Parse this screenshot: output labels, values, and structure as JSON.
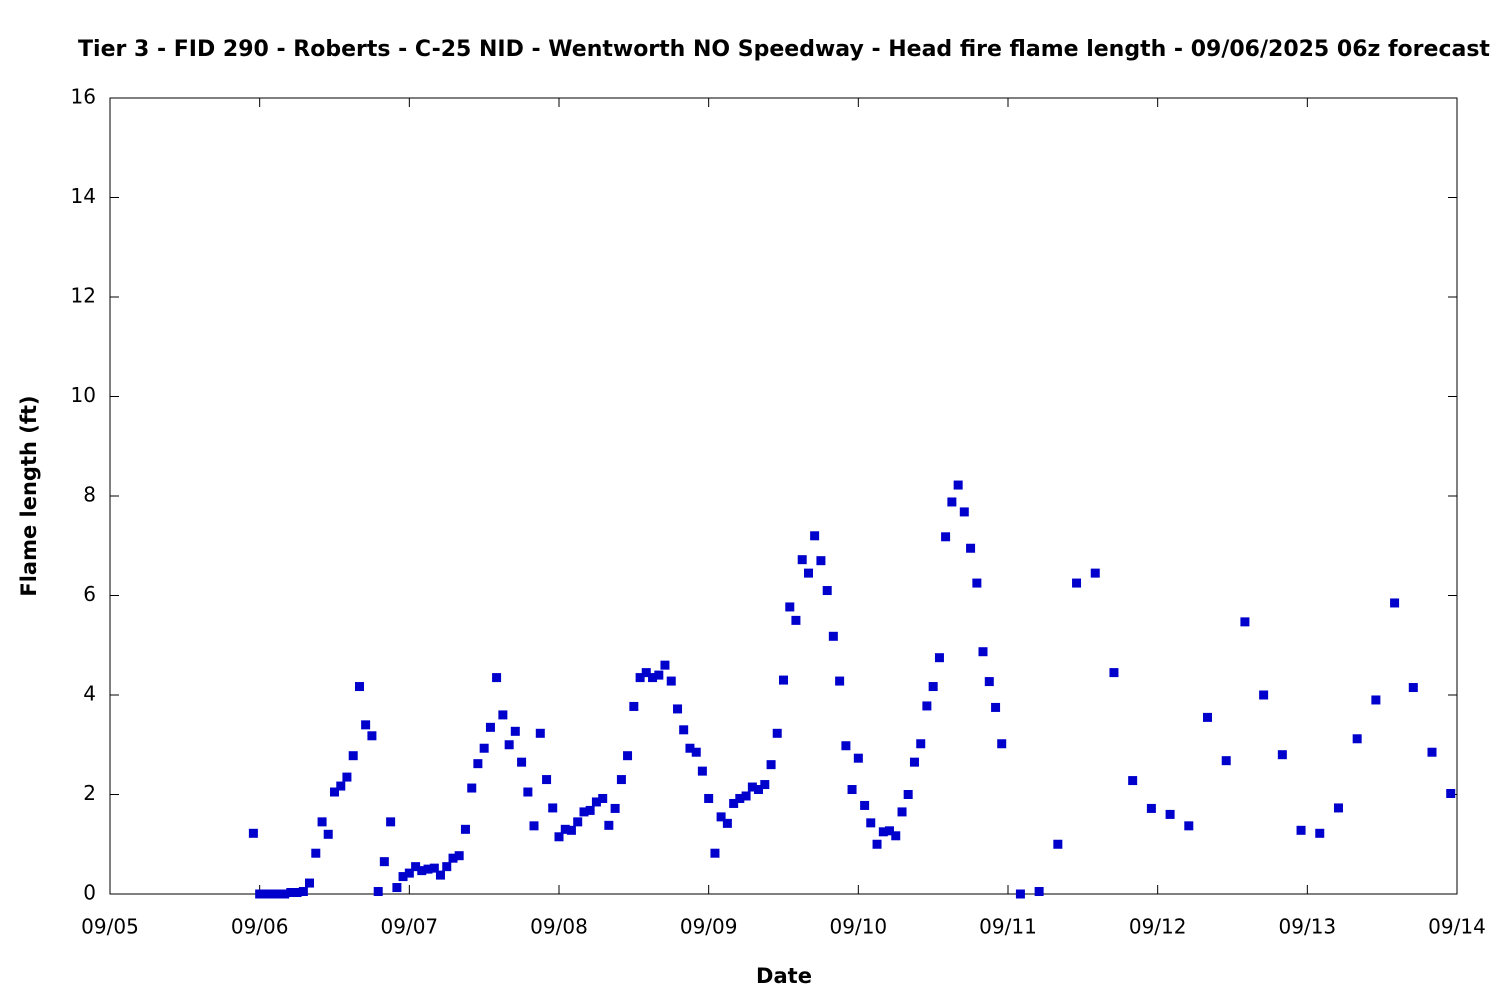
{
  "chart_data": {
    "type": "scatter",
    "title": "Tier 3 - FID 290 - Roberts - C-25 NID - Wentworth NO Speedway - Head fire flame length - 09/06/2025 06z forecast",
    "x_label": "Date",
    "y_label": "Flame length (ft)",
    "color": "#0000cc",
    "xlim": [
      5,
      14
    ],
    "xticks": [
      {
        "value": 5,
        "label": "09/05"
      },
      {
        "value": 6,
        "label": "09/06"
      },
      {
        "value": 7,
        "label": "09/07"
      },
      {
        "value": 8,
        "label": "09/08"
      },
      {
        "value": 9,
        "label": "09/09"
      },
      {
        "value": 10,
        "label": "09/10"
      },
      {
        "value": 11,
        "label": "09/11"
      },
      {
        "value": 12,
        "label": "09/12"
      },
      {
        "value": 13,
        "label": "09/13"
      },
      {
        "value": 14,
        "label": "09/14"
      }
    ],
    "ylim": [
      0,
      16
    ],
    "yticks": [
      0,
      2,
      4,
      6,
      8,
      10,
      12,
      14,
      16
    ],
    "x": [
      5.958,
      6.0,
      6.042,
      6.083,
      6.125,
      6.167,
      6.208,
      6.25,
      6.292,
      6.333,
      6.375,
      6.417,
      6.458,
      6.5,
      6.542,
      6.583,
      6.625,
      6.667,
      6.708,
      6.75,
      6.792,
      6.833,
      6.875,
      6.917,
      6.958,
      7.0,
      7.042,
      7.083,
      7.125,
      7.167,
      7.208,
      7.25,
      7.292,
      7.333,
      7.375,
      7.417,
      7.458,
      7.5,
      7.542,
      7.583,
      7.625,
      7.667,
      7.708,
      7.75,
      7.792,
      7.833,
      7.875,
      7.917,
      7.958,
      8.0,
      8.042,
      8.083,
      8.125,
      8.167,
      8.208,
      8.25,
      8.292,
      8.333,
      8.375,
      8.417,
      8.458,
      8.5,
      8.542,
      8.583,
      8.625,
      8.667,
      8.708,
      8.75,
      8.792,
      8.833,
      8.875,
      8.917,
      8.958,
      9.0,
      9.042,
      9.083,
      9.125,
      9.167,
      9.208,
      9.25,
      9.292,
      9.333,
      9.375,
      9.417,
      9.458,
      9.5,
      9.542,
      9.583,
      9.625,
      9.667,
      9.708,
      9.75,
      9.792,
      9.833,
      9.875,
      9.917,
      9.958,
      10.0,
      10.042,
      10.083,
      10.125,
      10.167,
      10.208,
      10.25,
      10.292,
      10.333,
      10.375,
      10.417,
      10.458,
      10.5,
      10.542,
      10.583,
      10.625,
      10.667,
      10.708,
      10.75,
      10.792,
      10.833,
      10.875,
      10.917,
      10.958,
      11.083,
      11.208,
      11.333,
      11.458,
      11.583,
      11.708,
      11.833,
      11.958,
      12.083,
      12.208,
      12.333,
      12.458,
      12.583,
      12.708,
      12.833,
      12.958,
      13.083,
      13.208,
      13.333,
      13.458,
      13.583,
      13.708,
      13.833,
      13.958
    ],
    "values": [
      1.22,
      0,
      0,
      0,
      0,
      0,
      0.03,
      0.03,
      0.05,
      0.22,
      0.82,
      1.45,
      1.2,
      2.05,
      2.17,
      2.35,
      2.78,
      4.17,
      3.4,
      3.18,
      0.05,
      0.65,
      1.45,
      0.13,
      0.35,
      0.42,
      0.55,
      0.47,
      0.5,
      0.52,
      0.38,
      0.55,
      0.72,
      0.77,
      1.3,
      2.13,
      2.62,
      2.93,
      3.35,
      4.35,
      3.6,
      3.0,
      3.27,
      2.65,
      2.05,
      1.37,
      3.23,
      2.3,
      1.73,
      1.15,
      1.3,
      1.28,
      1.45,
      1.65,
      1.68,
      1.85,
      1.92,
      1.38,
      1.72,
      2.3,
      2.78,
      3.77,
      4.35,
      4.45,
      4.35,
      4.4,
      4.6,
      4.28,
      3.72,
      3.3,
      2.93,
      2.85,
      2.47,
      1.92,
      0.82,
      1.55,
      1.42,
      1.82,
      1.92,
      1.97,
      2.15,
      2.1,
      2.2,
      2.6,
      3.23,
      4.3,
      5.77,
      5.5,
      6.72,
      6.45,
      7.2,
      6.7,
      6.1,
      5.18,
      4.28,
      2.98,
      2.1,
      2.73,
      1.78,
      1.43,
      1.0,
      1.25,
      1.27,
      1.17,
      1.65,
      2.0,
      2.65,
      3.02,
      3.78,
      4.17,
      4.75,
      7.18,
      7.88,
      8.22,
      7.68,
      6.95,
      6.25,
      4.87,
      4.27,
      3.75,
      3.02,
      0,
      0.05,
      1.0,
      6.25,
      6.45,
      4.45,
      2.28,
      1.72,
      1.6,
      1.37,
      3.55,
      2.68,
      5.47,
      4.0,
      2.8,
      1.28,
      1.22,
      1.73,
      3.12,
      3.9,
      5.85,
      4.15,
      2.85,
      2.02
    ]
  }
}
